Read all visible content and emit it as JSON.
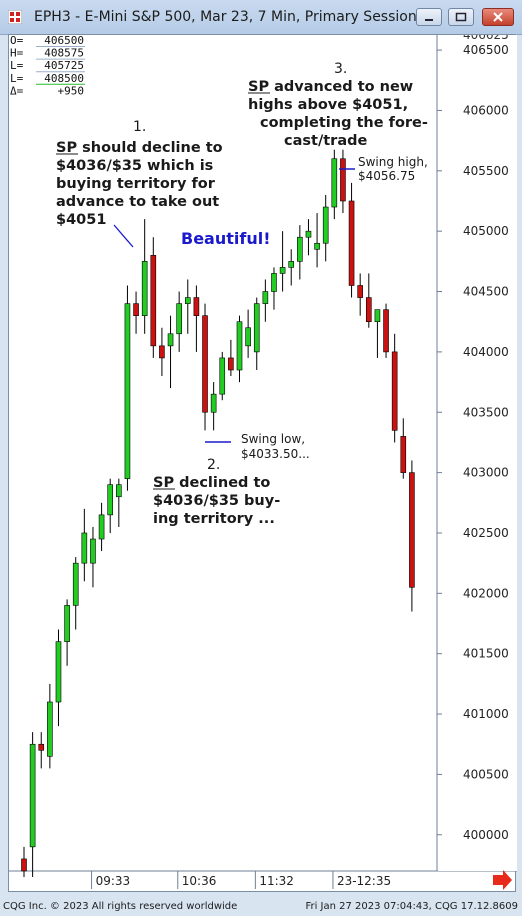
{
  "window": {
    "title": "EPH3 - E-Mini S&P 500, Mar 23, 7 Min, Primary Session"
  },
  "ohlc_box": [
    {
      "label": "O=",
      "value": "406500"
    },
    {
      "label": "H=",
      "value": "408575"
    },
    {
      "label": "L=",
      "value": "405725"
    },
    {
      "label": "L=",
      "value": "408500"
    },
    {
      "label": "Δ=",
      "value": "+950"
    }
  ],
  "price_axis": {
    "top_cut": "406625",
    "ticks": [
      "406500",
      "406000",
      "405500",
      "405000",
      "404500",
      "404000",
      "403500",
      "403000",
      "402500",
      "402000",
      "401500",
      "401000",
      "400500",
      "400000"
    ]
  },
  "time_axis": [
    "09:33",
    "10:36",
    "11:32",
    "23-12:35"
  ],
  "annotations": {
    "a1_num": "1.",
    "a1_lines": [
      "SP should decline to",
      "$4036/$35 which is",
      "buying territory for",
      "advance to take out",
      "$4051"
    ],
    "a2_num": "2.",
    "a2_lines": [
      "SP declined to",
      "$4036/$35 buy-",
      "ing territory ..."
    ],
    "a3_num": "3.",
    "a3_lines": [
      "SP advanced to new",
      "highs above $4051,",
      "completing the fore-",
      "cast/trade"
    ],
    "beautiful": "Beautiful!",
    "swing_high": [
      "Swing high,",
      "$4056.75"
    ],
    "swing_low": [
      "Swing low,",
      "$4033.50..."
    ]
  },
  "footer": {
    "left": "CQG Inc. © 2023 All rights reserved worldwide",
    "right": "Fri Jan 27 2023 07:04:43,  CQG 17.12.8609"
  },
  "colors": {
    "up": "#22cc22",
    "down": "#cc1111",
    "annotation": "#1a1a1a",
    "beautiful": "#1a1acc"
  },
  "chart_data": {
    "type": "candlestick",
    "title": "EPH3 - E-Mini S&P 500, Mar 23, 7 Min, Primary Session",
    "ylim": [
      399700,
      406625
    ],
    "x_tick_labels": [
      "09:33",
      "10:36",
      "11:32",
      "23-12:35"
    ],
    "candles": [
      {
        "o": 399800,
        "h": 399900,
        "l": 399650,
        "c": 399700
      },
      {
        "o": 399900,
        "h": 400850,
        "l": 399650,
        "c": 400750
      },
      {
        "o": 400750,
        "h": 400850,
        "l": 400550,
        "c": 400700
      },
      {
        "o": 400650,
        "h": 401250,
        "l": 400550,
        "c": 401100
      },
      {
        "o": 401100,
        "h": 401700,
        "l": 400900,
        "c": 401600
      },
      {
        "o": 401600,
        "h": 401950,
        "l": 401400,
        "c": 401900
      },
      {
        "o": 401900,
        "h": 402300,
        "l": 401700,
        "c": 402250
      },
      {
        "o": 402250,
        "h": 402700,
        "l": 402100,
        "c": 402500
      },
      {
        "o": 402250,
        "h": 402550,
        "l": 402050,
        "c": 402450
      },
      {
        "o": 402450,
        "h": 402750,
        "l": 402350,
        "c": 402650
      },
      {
        "o": 402650,
        "h": 402950,
        "l": 402500,
        "c": 402900
      },
      {
        "o": 402800,
        "h": 402950,
        "l": 402550,
        "c": 402900
      },
      {
        "o": 402950,
        "h": 404550,
        "l": 402850,
        "c": 404400
      },
      {
        "o": 404400,
        "h": 404500,
        "l": 404150,
        "c": 404300
      },
      {
        "o": 404300,
        "h": 405100,
        "l": 404150,
        "c": 404750
      },
      {
        "o": 404800,
        "h": 404950,
        "l": 403950,
        "c": 404050
      },
      {
        "o": 404050,
        "h": 404200,
        "l": 403800,
        "c": 403950
      },
      {
        "o": 404050,
        "h": 404300,
        "l": 403700,
        "c": 404150
      },
      {
        "o": 404150,
        "h": 404500,
        "l": 404000,
        "c": 404400
      },
      {
        "o": 404400,
        "h": 404600,
        "l": 404150,
        "c": 404450
      },
      {
        "o": 404450,
        "h": 404550,
        "l": 404000,
        "c": 404300
      },
      {
        "o": 404300,
        "h": 404400,
        "l": 403350,
        "c": 403500
      },
      {
        "o": 403500,
        "h": 403750,
        "l": 403350,
        "c": 403650
      },
      {
        "o": 403650,
        "h": 404000,
        "l": 403600,
        "c": 403950
      },
      {
        "o": 403950,
        "h": 404100,
        "l": 403800,
        "c": 403850
      },
      {
        "o": 403850,
        "h": 404300,
        "l": 403750,
        "c": 404250
      },
      {
        "o": 404050,
        "h": 404350,
        "l": 403950,
        "c": 404200
      },
      {
        "o": 404000,
        "h": 404450,
        "l": 403850,
        "c": 404400
      },
      {
        "o": 404400,
        "h": 404600,
        "l": 404250,
        "c": 404500
      },
      {
        "o": 404500,
        "h": 404700,
        "l": 404350,
        "c": 404650
      },
      {
        "o": 404650,
        "h": 405000,
        "l": 404500,
        "c": 404700
      },
      {
        "o": 404700,
        "h": 404850,
        "l": 404550,
        "c": 404750
      },
      {
        "o": 404750,
        "h": 405050,
        "l": 404600,
        "c": 404950
      },
      {
        "o": 404950,
        "h": 405100,
        "l": 404800,
        "c": 405000
      },
      {
        "o": 404850,
        "h": 405150,
        "l": 404700,
        "c": 404900
      },
      {
        "o": 404900,
        "h": 405300,
        "l": 404750,
        "c": 405200
      },
      {
        "o": 405200,
        "h": 405675,
        "l": 405100,
        "c": 405600
      },
      {
        "o": 405600,
        "h": 405675,
        "l": 405150,
        "c": 405250
      },
      {
        "o": 405250,
        "h": 405400,
        "l": 404450,
        "c": 404550
      },
      {
        "o": 404550,
        "h": 404650,
        "l": 404300,
        "c": 404450
      },
      {
        "o": 404450,
        "h": 404650,
        "l": 404200,
        "c": 404250
      },
      {
        "o": 404250,
        "h": 404350,
        "l": 403950,
        "c": 404350
      },
      {
        "o": 404350,
        "h": 404400,
        "l": 403950,
        "c": 404000
      },
      {
        "o": 404000,
        "h": 404150,
        "l": 403250,
        "c": 403350
      },
      {
        "o": 403300,
        "h": 403450,
        "l": 402950,
        "c": 403000
      },
      {
        "o": 403000,
        "h": 403100,
        "l": 401850,
        "c": 402050
      }
    ]
  }
}
